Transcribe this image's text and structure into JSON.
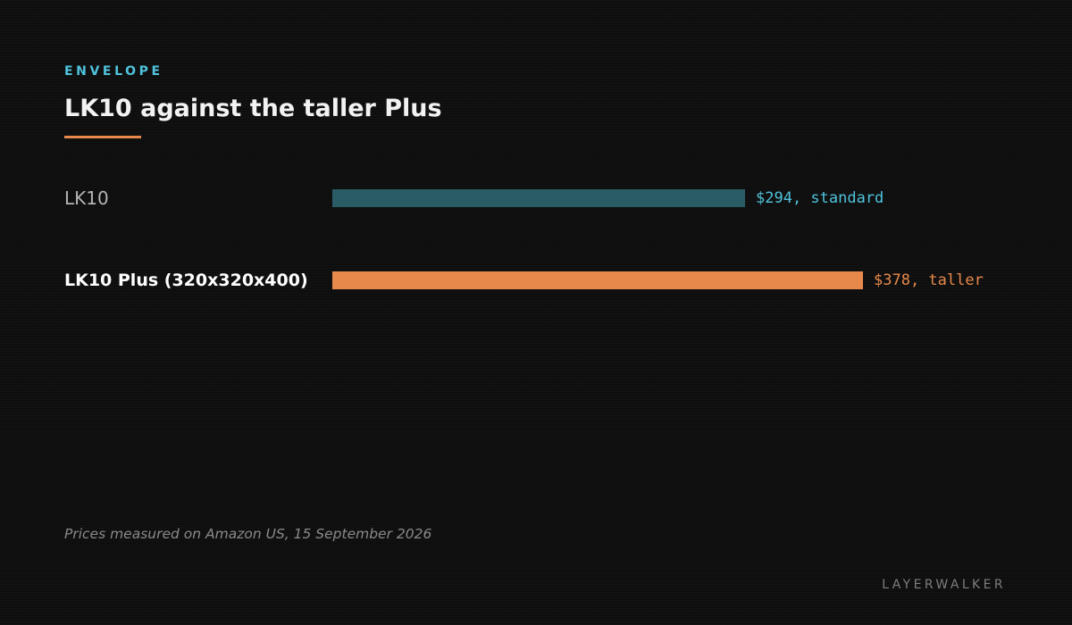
{
  "chart_data": {
    "type": "bar",
    "orientation": "horizontal",
    "eyebrow": "ENVELOPE",
    "title": "LK10 against the taller Plus",
    "categories": [
      "LK10",
      "LK10 Plus (320x320x400)"
    ],
    "values": [
      294,
      378
    ],
    "data_labels": [
      "$294, standard",
      "$378, taller"
    ],
    "highlighted": [
      false,
      true
    ],
    "colors": {
      "bars": [
        "#2a5c66",
        "#e8894c"
      ],
      "data_labels": [
        "#4fc3dc",
        "#e8894c"
      ],
      "category_labels": [
        "#b4b4b4",
        "#ffffff"
      ]
    },
    "xlim": [
      0,
      378
    ],
    "grid": false,
    "legend": "none",
    "footnote": "Prices measured on Amazon US, 15 September 2026"
  },
  "brand": "LAYERWALKER"
}
